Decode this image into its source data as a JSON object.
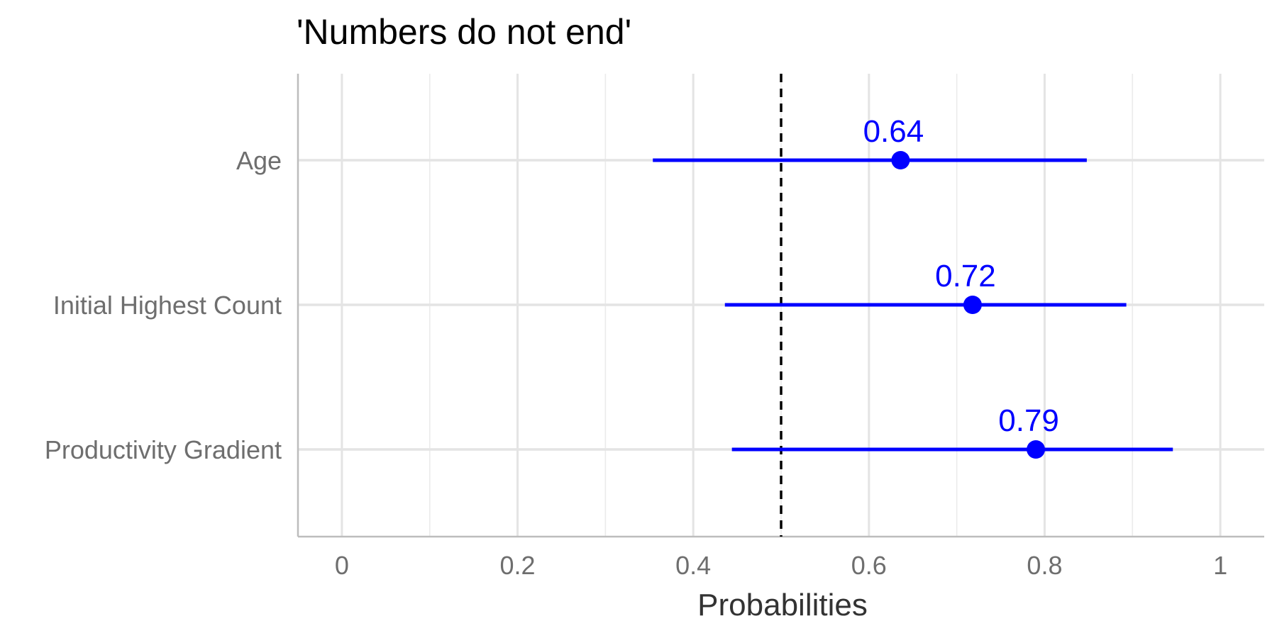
{
  "chart_data": {
    "type": "forest",
    "title": "'Numbers do not end'",
    "xlabel": "Probabilities",
    "ylabel": "",
    "xlim": [
      -0.05,
      1.05
    ],
    "x_ticks": [
      0,
      0.2,
      0.4,
      0.6,
      0.8,
      1
    ],
    "x_tick_labels": [
      "0",
      "0.2",
      "0.4",
      "0.6",
      "0.8",
      "1"
    ],
    "reference_line": 0.5,
    "grid": true,
    "point_color": "#0000ff",
    "categories": [
      "Age",
      "Initial Highest Count",
      "Productivity Gradient"
    ],
    "series": [
      {
        "estimates": [
          0.636,
          0.718,
          0.79
        ],
        "lower": [
          0.354,
          0.436,
          0.444
        ],
        "upper": [
          0.848,
          0.893,
          0.946
        ],
        "labels": [
          "0.64",
          "0.72",
          "0.79"
        ]
      }
    ]
  }
}
